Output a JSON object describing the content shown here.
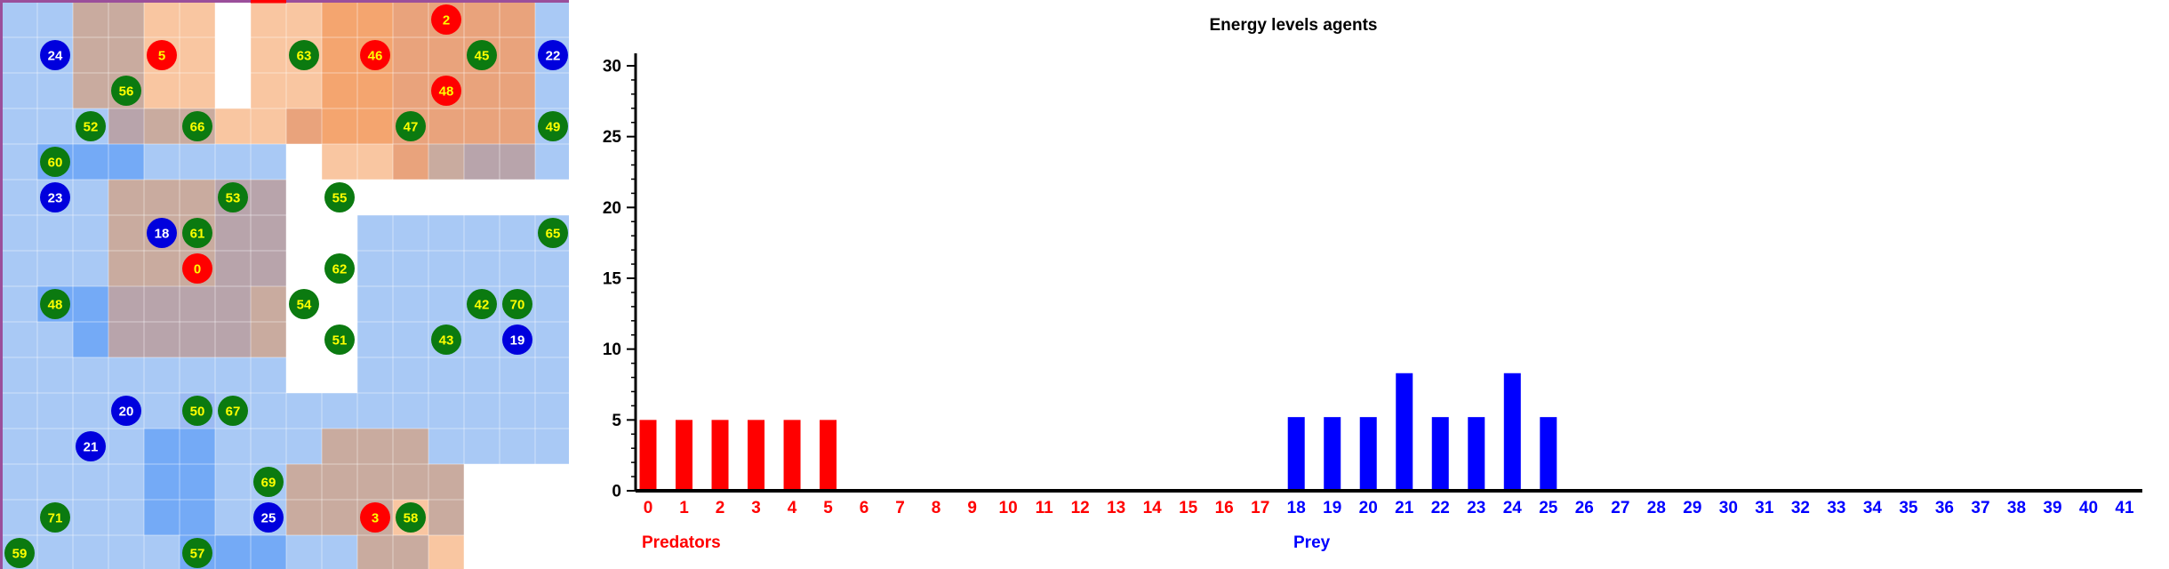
{
  "grid": {
    "cols": 16,
    "rows": 16,
    "palette": {
      "a": "#a9c9f5",
      "b": "#74aaf6",
      "c": "#9bbaf2",
      "t": "#c9ab9f",
      "u": "#b8a4ab",
      "p": "#f9c6a1",
      "q": "#f4a56f",
      "r": "#f08a3c",
      "s": "#e9a37c",
      "w": "#ffffff"
    },
    "cell_rows": [
      "aattppwppqqssssa",
      "aattppwppqqssssa",
      "aattppwppqqssssa",
      "aaauttppsqqssssa",
      "abbbaaaawppstuua",
      "aaatttuuwwwwwwww",
      "aaatttuuwwaaaaaa",
      "aaatttuuwwaaaaaa",
      "abbuuuutwwaaaaaa",
      "aabuuuutwwaaaaaa",
      "aaaaaaaawwaaaaaa",
      "aaaaacaaaaaaaaaa",
      "aaaabbaaatttaaaa",
      "aaaabbaatttttwww",
      "aaaabbaatttptwww",
      "aaaaabbbaattpwww"
    ],
    "border_color": "#9b4f9b",
    "red_border_color": "#ff0000",
    "agent_colors": {
      "predator": "#ff0000",
      "prey": "#0000dd",
      "plant": "#0b7a10"
    },
    "label_colors": {
      "predator": "#ffff00",
      "prey": "#ffffff",
      "plant": "#ffff00"
    },
    "agents": [
      {
        "id": "2",
        "kind": "predator",
        "col": 12,
        "row": 0
      },
      {
        "id": "24",
        "kind": "prey",
        "col": 1,
        "row": 1
      },
      {
        "id": "5",
        "kind": "predator",
        "col": 4,
        "row": 1
      },
      {
        "id": "63",
        "kind": "plant",
        "col": 8,
        "row": 1
      },
      {
        "id": "46",
        "kind": "predator",
        "col": 10,
        "row": 1
      },
      {
        "id": "45",
        "kind": "plant",
        "col": 13,
        "row": 1
      },
      {
        "id": "22",
        "kind": "prey",
        "col": 15,
        "row": 1
      },
      {
        "id": "56",
        "kind": "plant",
        "col": 3,
        "row": 2
      },
      {
        "id": "48",
        "kind": "predator",
        "col": 12,
        "row": 2
      },
      {
        "id": "52",
        "kind": "plant",
        "col": 2,
        "row": 3
      },
      {
        "id": "66",
        "kind": "plant",
        "col": 5,
        "row": 3
      },
      {
        "id": "47",
        "kind": "plant",
        "col": 11,
        "row": 3
      },
      {
        "id": "49",
        "kind": "plant",
        "col": 15,
        "row": 3
      },
      {
        "id": "60",
        "kind": "plant",
        "col": 1,
        "row": 4
      },
      {
        "id": "23",
        "kind": "prey",
        "col": 1,
        "row": 5
      },
      {
        "id": "53",
        "kind": "plant",
        "col": 6,
        "row": 5
      },
      {
        "id": "55",
        "kind": "plant",
        "col": 9,
        "row": 5
      },
      {
        "id": "18",
        "kind": "prey",
        "col": 4,
        "row": 6
      },
      {
        "id": "61",
        "kind": "plant",
        "col": 5,
        "row": 6
      },
      {
        "id": "65",
        "kind": "plant",
        "col": 15,
        "row": 6
      },
      {
        "id": "0",
        "kind": "predator",
        "col": 5,
        "row": 7
      },
      {
        "id": "62",
        "kind": "plant",
        "col": 9,
        "row": 7
      },
      {
        "id": "48",
        "kind": "plant",
        "col": 1,
        "row": 8
      },
      {
        "id": "54",
        "kind": "plant",
        "col": 8,
        "row": 8
      },
      {
        "id": "42",
        "kind": "plant",
        "col": 13,
        "row": 8
      },
      {
        "id": "70",
        "kind": "plant",
        "col": 14,
        "row": 8
      },
      {
        "id": "51",
        "kind": "plant",
        "col": 9,
        "row": 9
      },
      {
        "id": "43",
        "kind": "plant",
        "col": 12,
        "row": 9
      },
      {
        "id": "19",
        "kind": "prey",
        "col": 14,
        "row": 9
      },
      {
        "id": "20",
        "kind": "prey",
        "col": 3,
        "row": 11
      },
      {
        "id": "50",
        "kind": "plant",
        "col": 5,
        "row": 11
      },
      {
        "id": "67",
        "kind": "plant",
        "col": 6,
        "row": 11
      },
      {
        "id": "21",
        "kind": "prey",
        "col": 2,
        "row": 12
      },
      {
        "id": "69",
        "kind": "plant",
        "col": 7,
        "row": 13
      },
      {
        "id": "71",
        "kind": "plant",
        "col": 1,
        "row": 14
      },
      {
        "id": "25",
        "kind": "prey",
        "col": 7,
        "row": 14
      },
      {
        "id": "3",
        "kind": "predator",
        "col": 10,
        "row": 14
      },
      {
        "id": "58",
        "kind": "plant",
        "col": 11,
        "row": 14
      },
      {
        "id": "59",
        "kind": "plant",
        "col": 0,
        "row": 15
      },
      {
        "id": "57",
        "kind": "plant",
        "col": 5,
        "row": 15
      }
    ]
  },
  "chart_data": {
    "type": "bar",
    "title": "Energy levels agents",
    "xlabel": "",
    "ylabel": "",
    "ylim": [
      0,
      31
    ],
    "yticks": [
      0,
      5,
      10,
      15,
      20,
      25,
      30
    ],
    "categories": [
      "0",
      "1",
      "2",
      "3",
      "4",
      "5",
      "6",
      "7",
      "8",
      "9",
      "10",
      "11",
      "12",
      "13",
      "14",
      "15",
      "16",
      "17",
      "18",
      "19",
      "20",
      "21",
      "22",
      "23",
      "24",
      "25",
      "26",
      "27",
      "28",
      "29",
      "30",
      "31",
      "32",
      "33",
      "34",
      "35",
      "36",
      "37",
      "38",
      "39",
      "40",
      "41"
    ],
    "series": [
      {
        "name": "Predators",
        "color": "#ff0000",
        "values": [
          5,
          5,
          5,
          5,
          5,
          5,
          0,
          0,
          0,
          0,
          0,
          0,
          0,
          0,
          0,
          0,
          0,
          0,
          null,
          null,
          null,
          null,
          null,
          null,
          null,
          null,
          null,
          null,
          null,
          null,
          null,
          null,
          null,
          null,
          null,
          null,
          null,
          null,
          null,
          null,
          null,
          null
        ]
      },
      {
        "name": "Prey",
        "color": "#0000ff",
        "values": [
          null,
          null,
          null,
          null,
          null,
          null,
          null,
          null,
          null,
          null,
          null,
          null,
          null,
          null,
          null,
          null,
          null,
          null,
          5.2,
          5.2,
          5.2,
          8.3,
          5.2,
          5.2,
          8.3,
          5.2,
          0,
          0,
          0,
          0,
          0,
          0,
          0,
          0,
          0,
          0,
          0,
          0,
          0,
          0,
          0,
          0
        ]
      }
    ],
    "category_colors": {
      "predator_range": [
        0,
        17
      ],
      "prey_range": [
        18,
        41
      ]
    },
    "grid": false,
    "legend": "below-axis"
  }
}
